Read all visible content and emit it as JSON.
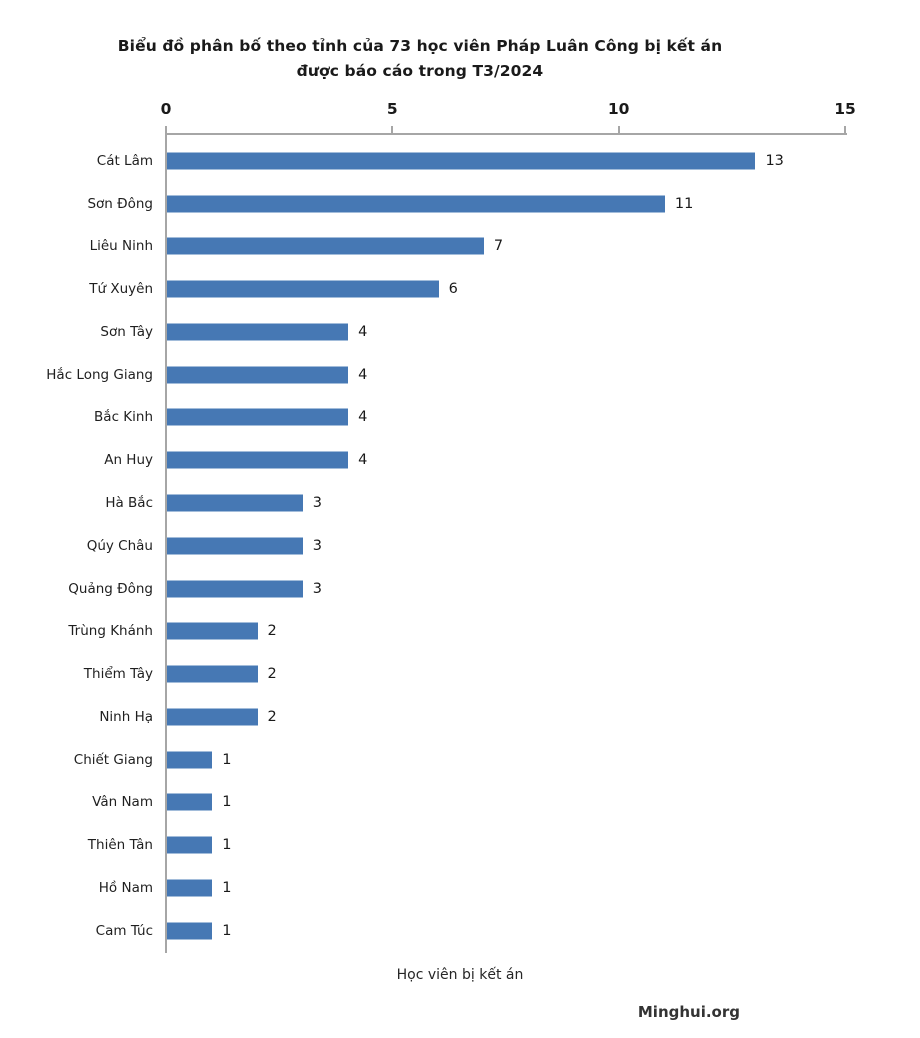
{
  "title": {
    "line1": "Biểu đồ phân bố theo tỉnh của 73 học viên Pháp Luân Công bị kết án",
    "line2": "được báo cáo trong T3/2024"
  },
  "source_label": "Minghui.org",
  "chart_data": {
    "type": "bar",
    "orientation": "horizontal",
    "title": "Biểu đồ phân bố theo tỉnh của 73 học viên Pháp Luân Công bị kết án được báo cáo trong T3/2024",
    "categories": [
      "Cát Lâm",
      "Sơn Đông",
      "Liêu Ninh",
      "Tứ Xuyên",
      "Sơn Tây",
      "Hắc Long Giang",
      "Bắc Kinh",
      "An Huy",
      "Hà Bắc",
      "Qúy Châu",
      "Quảng Đông",
      "Trùng Khánh",
      "Thiểm Tây",
      "Ninh Hạ",
      "Chiết Giang",
      "Vân Nam",
      "Thiên Tân",
      "Hồ Nam",
      "Cam Túc"
    ],
    "values": [
      13,
      11,
      7,
      6,
      4,
      4,
      4,
      4,
      3,
      3,
      3,
      2,
      2,
      2,
      1,
      1,
      1,
      1,
      1
    ],
    "total": 73,
    "xlabel": "Học viên bị kết án",
    "xlim": [
      0,
      15
    ],
    "xticks": [
      0,
      5,
      10,
      15
    ],
    "axis_position": "top",
    "grid": false,
    "legend": false,
    "data_labels": true,
    "bar_color": "#4678B4",
    "axis_color": "#A6A6A6",
    "text_color": "#1A1A1A"
  }
}
